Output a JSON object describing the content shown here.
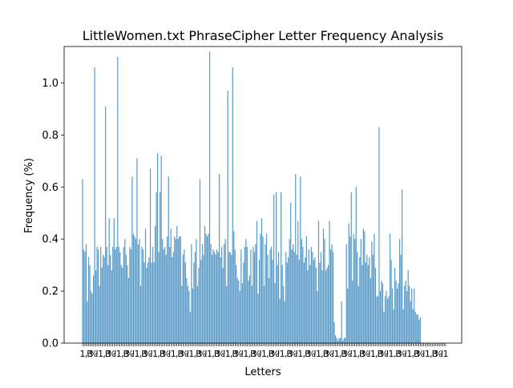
{
  "chart_data": {
    "type": "bar",
    "title": "LittleWomen.txt PhraseCipher Letter Frequency Analysis",
    "xlabel": "Letters",
    "ylabel": "Frequency (%)",
    "ylim": [
      0,
      1.14
    ],
    "yticks": [
      "0.0",
      "0.2",
      "0.4",
      "0.6",
      "0.8",
      "1.0"
    ],
    "bar_color": "#5a9bc8",
    "grid": false,
    "legend": "none",
    "tick_label_text": "1B!,%",
    "values": [
      0.63,
      0.36,
      0.35,
      0.38,
      0.16,
      0.33,
      0.3,
      0.2,
      0.19,
      0.26,
      1.06,
      0.28,
      0.37,
      0.36,
      0.22,
      0.37,
      0.29,
      0.34,
      0.33,
      0.91,
      0.37,
      0.3,
      0.48,
      0.34,
      0.28,
      0.37,
      0.48,
      0.36,
      0.37,
      1.1,
      0.37,
      0.35,
      0.3,
      0.29,
      0.37,
      0.4,
      0.34,
      0.3,
      0.25,
      0.37,
      0.36,
      0.64,
      0.42,
      0.41,
      0.4,
      0.71,
      0.38,
      0.4,
      0.22,
      0.37,
      0.36,
      0.31,
      0.44,
      0.29,
      0.31,
      0.33,
      0.67,
      0.31,
      0.37,
      0.31,
      0.45,
      0.58,
      0.73,
      0.35,
      0.58,
      0.72,
      0.4,
      0.36,
      0.37,
      0.34,
      0.41,
      0.64,
      0.37,
      0.44,
      0.33,
      0.35,
      0.41,
      0.4,
      0.45,
      0.4,
      0.41,
      0.41,
      0.22,
      0.34,
      0.36,
      0.31,
      0.25,
      0.22,
      0.2,
      0.12,
      0.38,
      0.21,
      0.31,
      0.35,
      0.4,
      0.22,
      0.29,
      0.63,
      0.32,
      0.38,
      0.34,
      0.45,
      0.42,
      0.41,
      0.42,
      1.12,
      0.38,
      0.34,
      0.36,
      0.35,
      0.34,
      0.36,
      0.35,
      0.65,
      0.33,
      0.37,
      0.29,
      0.38,
      0.4,
      0.22,
      0.97,
      0.35,
      0.35,
      0.34,
      1.06,
      0.43,
      0.36,
      0.3,
      0.25,
      0.24,
      0.2,
      0.36,
      0.23,
      0.31,
      0.37,
      0.4,
      0.37,
      0.24,
      0.26,
      0.36,
      0.22,
      0.37,
      0.35,
      0.38,
      0.47,
      0.19,
      0.32,
      0.42,
      0.48,
      0.41,
      0.22,
      0.38,
      0.42,
      0.34,
      0.25,
      0.36,
      0.37,
      0.32,
      0.57,
      0.23,
      0.58,
      0.3,
      0.35,
      0.17,
      0.58,
      0.3,
      0.22,
      0.16,
      0.35,
      0.31,
      0.33,
      0.4,
      0.54,
      0.36,
      0.38,
      0.35,
      0.65,
      0.34,
      0.47,
      0.32,
      0.64,
      0.4,
      0.37,
      0.31,
      0.33,
      0.41,
      0.28,
      0.36,
      0.3,
      0.37,
      0.35,
      0.32,
      0.33,
      0.29,
      0.2,
      0.47,
      0.31,
      0.35,
      0.28,
      0.44,
      0.4,
      0.28,
      0.29,
      0.3,
      0.47,
      0.36,
      0.38,
      0.35,
      0.08,
      0.03,
      0.02,
      0.01,
      0.02,
      0.02,
      0.16,
      0.01,
      0.02,
      0.02,
      0.38,
      0.21,
      0.46,
      0.41,
      0.58,
      0.24,
      0.42,
      0.4,
      0.6,
      0.35,
      0.22,
      0.33,
      0.4,
      0.3,
      0.44,
      0.43,
      0.31,
      0.34,
      0.3,
      0.33,
      0.25,
      0.39,
      0.34,
      0.42,
      0.29,
      0.18,
      0.18,
      0.83,
      0.2,
      0.24,
      0.23,
      0.12,
      0.18,
      0.2,
      0.17,
      0.18,
      0.42,
      0.32,
      0.21,
      0.13,
      0.29,
      0.24,
      0.21,
      0.23,
      0.4,
      0.34,
      0.59,
      0.13,
      0.22,
      0.24,
      0.2,
      0.28,
      0.22,
      0.16,
      0.21,
      0.13,
      0.21,
      0.12,
      0.11,
      0.11,
      0.09,
      0.1,
      0,
      0,
      0,
      0,
      0,
      0,
      0,
      0,
      0,
      0,
      0,
      0,
      0,
      0,
      0,
      0,
      0,
      0,
      0,
      0,
      0
    ]
  }
}
